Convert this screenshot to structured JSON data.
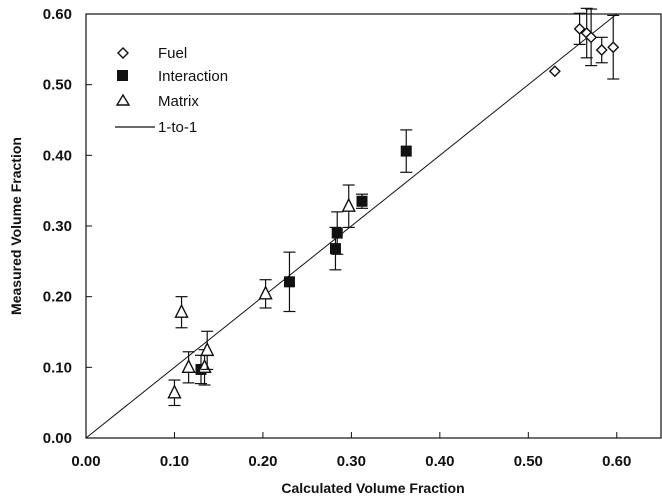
{
  "chart_data": {
    "type": "scatter",
    "xlabel": "Calculated Volume Fraction",
    "ylabel": "Measured Volume Fraction",
    "xlim": [
      0.0,
      0.65
    ],
    "ylim": [
      0.0,
      0.6
    ],
    "x_ticks": [
      "0.00",
      "0.10",
      "0.20",
      "0.30",
      "0.40",
      "0.50",
      "0.60"
    ],
    "y_ticks": [
      "0.00",
      "0.10",
      "0.20",
      "0.30",
      "0.40",
      "0.50",
      "0.60"
    ],
    "grid": false,
    "legend_position": "top-left",
    "series": [
      {
        "name": "Fuel",
        "marker": "open-diamond",
        "points": [
          {
            "x": 0.53,
            "y": 0.519
          },
          {
            "x": 0.558,
            "y": 0.579,
            "err": 0.022
          },
          {
            "x": 0.566,
            "y": 0.573,
            "err": 0.035
          },
          {
            "x": 0.571,
            "y": 0.567,
            "err": 0.04
          },
          {
            "x": 0.583,
            "y": 0.549,
            "err": 0.018
          },
          {
            "x": 0.596,
            "y": 0.553,
            "err": 0.045
          }
        ]
      },
      {
        "name": "Interaction",
        "marker": "filled-square",
        "points": [
          {
            "x": 0.13,
            "y": 0.097,
            "err": 0.02
          },
          {
            "x": 0.23,
            "y": 0.221,
            "err": 0.042
          },
          {
            "x": 0.282,
            "y": 0.268,
            "err": 0.03
          },
          {
            "x": 0.284,
            "y": 0.29,
            "err": 0.03
          },
          {
            "x": 0.312,
            "y": 0.335,
            "err": 0.01
          },
          {
            "x": 0.362,
            "y": 0.406,
            "err": 0.03
          }
        ]
      },
      {
        "name": "Matrix",
        "marker": "open-triangle",
        "points": [
          {
            "x": 0.1,
            "y": 0.064,
            "err": 0.018
          },
          {
            "x": 0.108,
            "y": 0.178,
            "err": 0.022
          },
          {
            "x": 0.116,
            "y": 0.1,
            "err": 0.022
          },
          {
            "x": 0.134,
            "y": 0.1,
            "err": 0.025
          },
          {
            "x": 0.137,
            "y": 0.124,
            "err": 0.027
          },
          {
            "x": 0.203,
            "y": 0.204,
            "err": 0.02
          },
          {
            "x": 0.297,
            "y": 0.328,
            "err": 0.03
          }
        ]
      },
      {
        "name": "1-to-1",
        "marker": "line",
        "points": [
          {
            "x": 0.0,
            "y": 0.0
          },
          {
            "x": 0.6,
            "y": 0.6
          }
        ]
      }
    ]
  },
  "colors": {
    "ink": "#111111",
    "background": "#ffffff"
  }
}
